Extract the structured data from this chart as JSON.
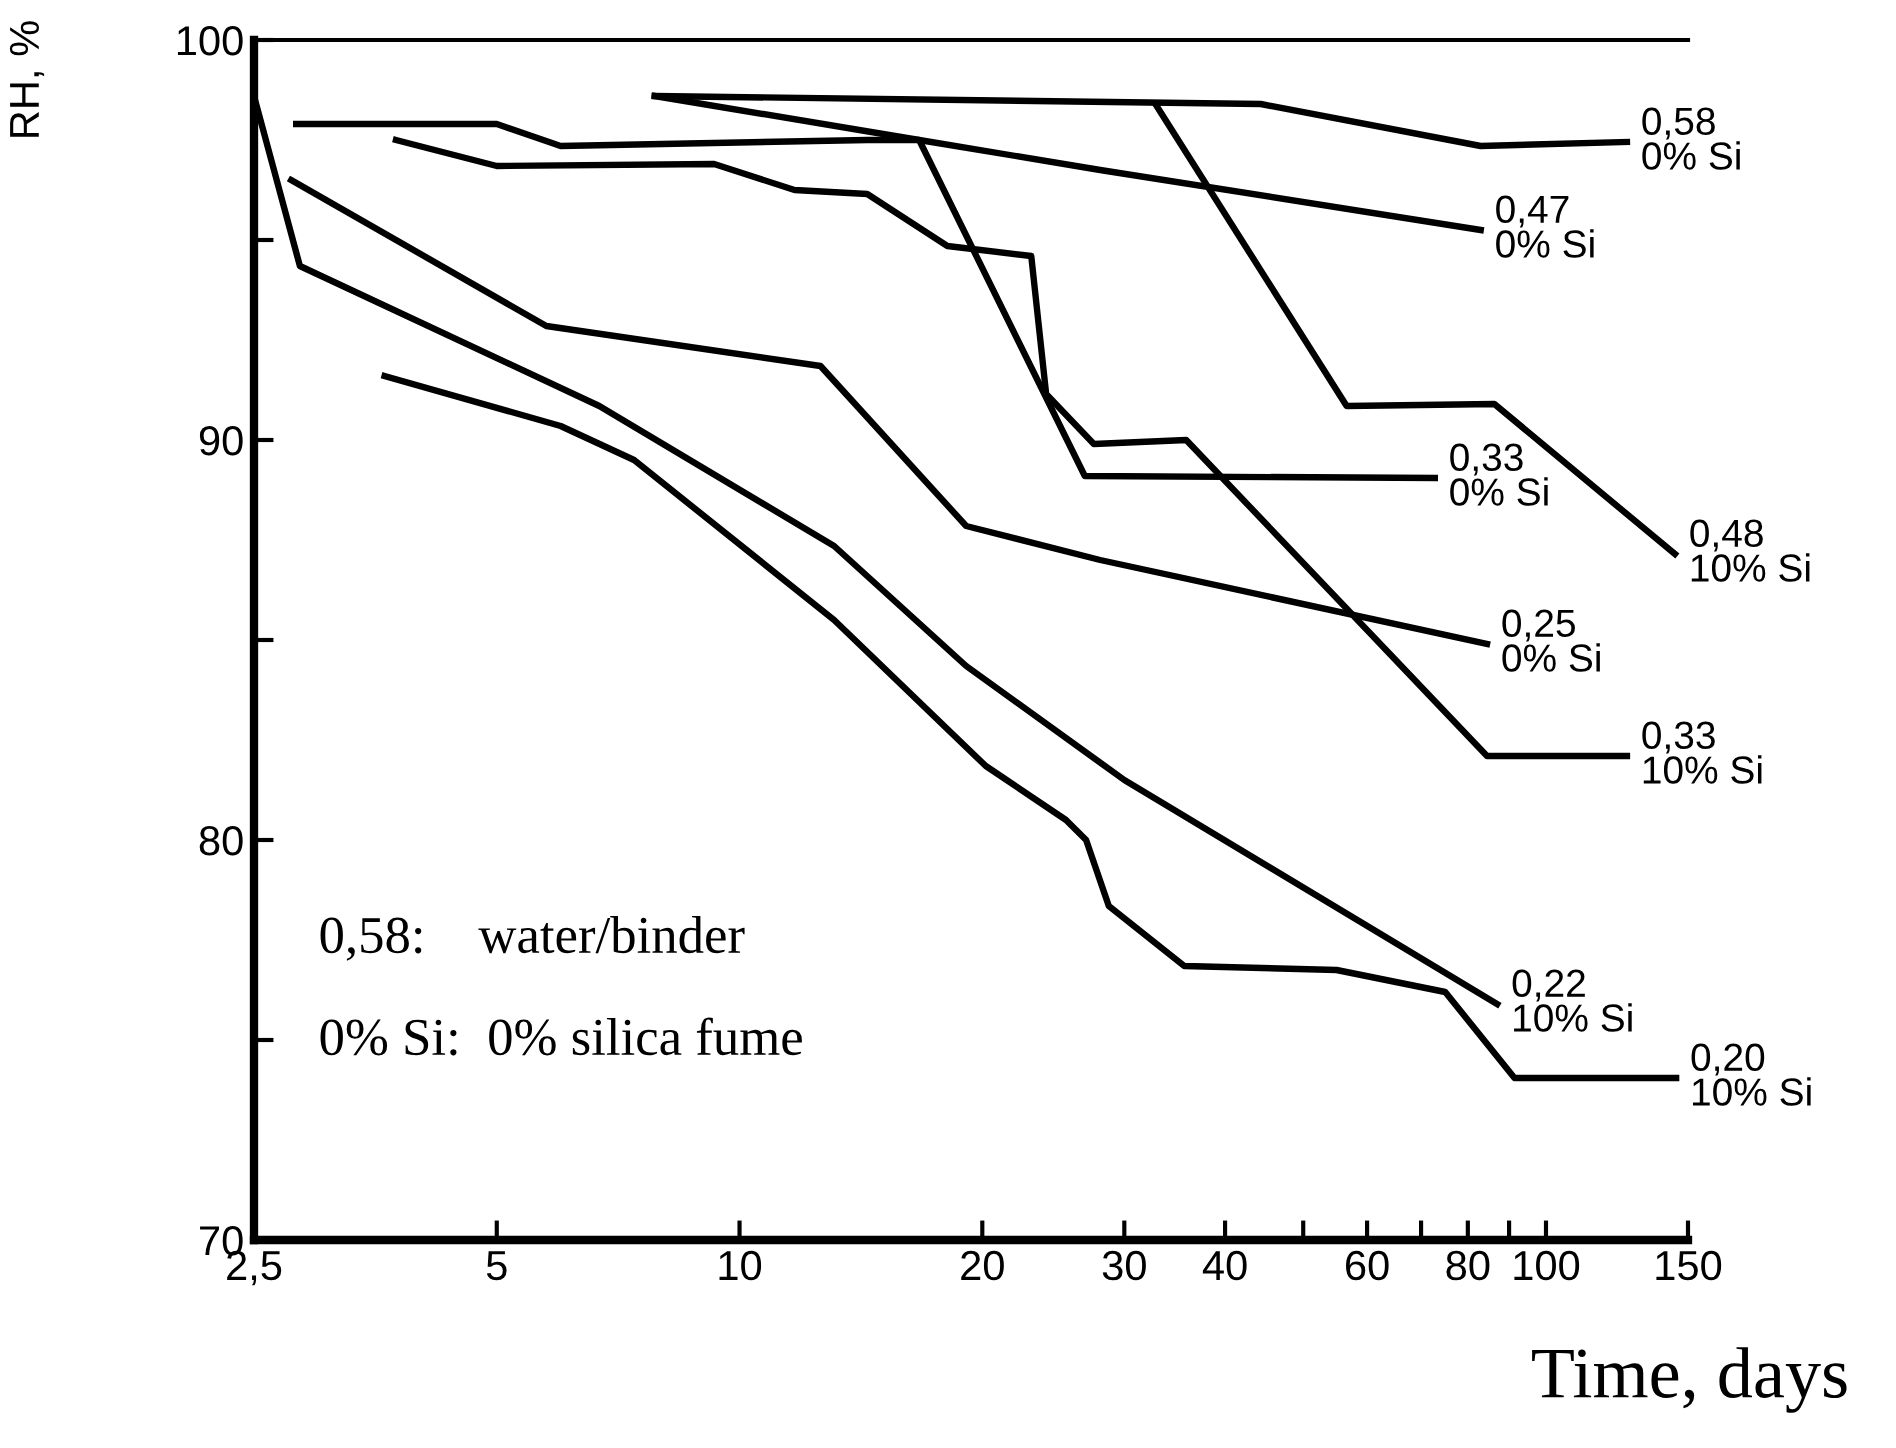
{
  "chart_data": {
    "type": "line",
    "xlabel": "Time, days",
    "ylabel": "RH, %",
    "log": "x",
    "grid": false,
    "legend": false,
    "marker": "none",
    "line_style": "solid",
    "xlim": [
      2.5,
      150
    ],
    "ylim": [
      70,
      100
    ],
    "xticks": [
      {
        "value": 2.5,
        "label": "2,5"
      },
      5,
      10,
      20,
      30,
      40,
      {
        "value": 50,
        "label": null
      },
      60,
      {
        "value": 70,
        "label": null
      },
      80,
      {
        "value": 90,
        "label": null
      },
      100,
      150
    ],
    "yticks": [
      70,
      {
        "value": 75,
        "label": null
      },
      80,
      {
        "value": 85,
        "label": null
      },
      90,
      {
        "value": 95,
        "label": null
      },
      100
    ],
    "annotations": [
      "0,58:    water/binder",
      "0% Si:  0% silica fume"
    ],
    "series": [
      {
        "name": "0,58\n0% Si",
        "color": "#000000",
        "x": [
          7.85,
          44.3,
          83,
          126
        ],
        "values": [
          98.6,
          98.4,
          97.35,
          97.45
        ]
      },
      {
        "name": "0,47\n0% Si",
        "color": "#000000",
        "x": [
          7.85,
          16.7,
          28,
          83
        ],
        "values": [
          98.6,
          97.5,
          96.75,
          95.25
        ]
      },
      {
        "name": "0,33\n0% Si",
        "color": "#000000",
        "x": [
          2.82,
          5.0,
          6.0,
          14.4,
          16.7,
          26.8,
          72.8
        ],
        "values": [
          97.9,
          97.9,
          97.35,
          97.5,
          97.5,
          89.1,
          89.05
        ]
      },
      {
        "name": "0,48\n10% Si",
        "color": "#000000",
        "x": [
          32.9,
          56.6,
          86.3,
          144.5
        ],
        "values": [
          98.35,
          90.85,
          90.9,
          87.15
        ]
      },
      {
        "name": "0,25\n0% Si",
        "color": "#000000",
        "x": [
          2.78,
          5.76,
          12.6,
          19.1,
          28,
          84.5
        ],
        "values": [
          96.5,
          92.85,
          91.85,
          87.85,
          87.0,
          84.9
        ]
      },
      {
        "name": "0,33\n10% Si",
        "color": "#000000",
        "x": [
          3.75,
          5.0,
          9.3,
          11.7,
          14.4,
          18.1,
          23,
          24,
          27.5,
          35.8,
          84.5,
          126
        ],
        "values": [
          97.5,
          96.85,
          96.9,
          96.25,
          96.15,
          94.85,
          94.6,
          91.15,
          89.9,
          90.0,
          82.1,
          82.1
        ]
      },
      {
        "name": "0,22\n10% Si",
        "color": "#000000",
        "x": [
          2.5,
          2.85,
          6.7,
          13.1,
          19.1,
          30,
          87
        ],
        "values": [
          98.6,
          94.35,
          90.85,
          87.35,
          84.35,
          81.5,
          75.9
        ]
      },
      {
        "name": "0,20\n10% Si",
        "color": "#000000",
        "x": [
          3.63,
          6.0,
          7.4,
          13.1,
          20.2,
          25.4,
          26.9,
          28.7,
          35.6,
          55,
          75,
          91.4,
          145
        ],
        "values": [
          91.6,
          90.35,
          89.5,
          85.5,
          81.85,
          80.5,
          80.0,
          78.35,
          76.85,
          76.75,
          76.2,
          74.05,
          74.05
        ]
      }
    ]
  }
}
